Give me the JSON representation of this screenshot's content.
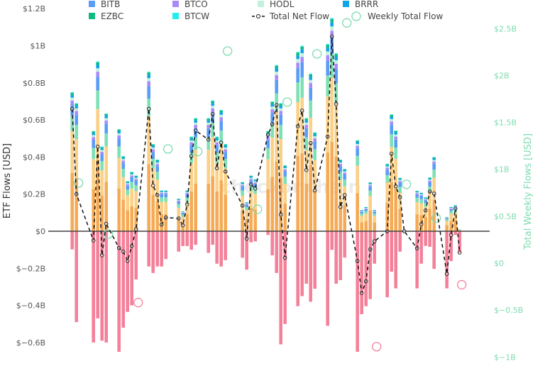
{
  "chart_data": {
    "type": "bar",
    "title": "",
    "ylabel": "ETF Flows [USD]",
    "y2label": "Total Weekly Flows [USD]",
    "ylim": [
      -0.6,
      1.2
    ],
    "y2lim": [
      -1,
      2.5
    ],
    "units": "billion USD",
    "watermark": "checkonchain",
    "left_ticks": [
      {
        "v": 1.2,
        "label": "$1.2B"
      },
      {
        "v": 1.0,
        "label": "$1B"
      },
      {
        "v": 0.8,
        "label": "$0.8B"
      },
      {
        "v": 0.6,
        "label": "$0.6B"
      },
      {
        "v": 0.4,
        "label": "$0.4B"
      },
      {
        "v": 0.2,
        "label": "$0.2B"
      },
      {
        "v": 0,
        "label": "$0"
      },
      {
        "v": -0.2,
        "label": "$−0.2B"
      },
      {
        "v": -0.4,
        "label": "$−0.4B"
      },
      {
        "v": -0.6,
        "label": "$−0.6B"
      }
    ],
    "right_ticks": [
      {
        "v": 2.5,
        "label": "$2.5B"
      },
      {
        "v": 2.0,
        "label": "$2B"
      },
      {
        "v": 1.5,
        "label": "$1.5B"
      },
      {
        "v": 1.0,
        "label": "$1B"
      },
      {
        "v": 0.5,
        "label": "$0.5B"
      },
      {
        "v": 0,
        "label": "$0"
      },
      {
        "v": -0.5,
        "label": "$−0.5B"
      },
      {
        "v": -1.0,
        "label": "$−1B"
      }
    ],
    "legend": [
      {
        "name": "BITB",
        "color": "#5b9cf6",
        "kind": "bar"
      },
      {
        "name": "BTCO",
        "color": "#a78bfa",
        "kind": "bar"
      },
      {
        "name": "HODL",
        "color": "#c2f0dc",
        "kind": "bar"
      },
      {
        "name": "BRRR",
        "color": "#0ea5e9",
        "kind": "bar"
      },
      {
        "name": "EZBC",
        "color": "#10b981",
        "kind": "bar"
      },
      {
        "name": "BTCW",
        "color": "#22eeee",
        "kind": "bar"
      },
      {
        "name": "Total Net Flow",
        "color": "#111111",
        "kind": "line"
      },
      {
        "name": "Weekly Total Flow",
        "color": "#7ddbb0",
        "kind": "circle"
      }
    ],
    "positive_stack_shares": [
      {
        "color": "#f5ab55",
        "share": 0.42
      },
      {
        "color": "#fbd087",
        "share": 0.3
      },
      {
        "color": "#7ee0b5",
        "share": 0.11
      },
      {
        "color": "#5b9cf6",
        "share": 0.08
      },
      {
        "color": "#a78bfa",
        "share": 0.03
      },
      {
        "color": "#c2f0dc",
        "share": 0.02
      },
      {
        "color": "#0ea5e9",
        "share": 0.02
      },
      {
        "color": "#10b981",
        "share": 0.015
      },
      {
        "color": "#22eeee",
        "share": 0.005
      }
    ],
    "negative_color": "#f4819a",
    "daily": {
      "day": [
        0,
        1,
        5,
        6,
        7,
        8,
        11,
        12,
        13,
        14,
        15,
        18,
        19,
        20,
        21,
        22,
        25,
        26,
        27,
        28,
        29,
        32,
        33,
        34,
        35,
        36,
        40,
        41,
        42,
        43,
        46,
        47,
        48,
        49,
        50,
        53,
        54,
        55,
        56,
        57,
        60,
        61,
        62,
        63,
        64,
        67,
        68,
        69,
        70,
        71,
        74,
        75,
        76,
        77,
        78,
        81,
        82,
        83,
        84,
        85,
        88,
        89,
        90,
        91
      ],
      "inflow": [
        0.75,
        0.69,
        0.54,
        0.915,
        0.456,
        0.635,
        0.55,
        0.405,
        0.27,
        0.32,
        0.3,
        0.86,
        0.47,
        0.386,
        0.22,
        0.22,
        0.176,
        0.107,
        0.22,
        0.51,
        0.61,
        0.61,
        0.705,
        0.51,
        0.654,
        0.47,
        0.265,
        0.157,
        0.3,
        0.28,
        0.54,
        0.7,
        0.896,
        0.69,
        0.355,
        0.967,
        1.0,
        0.61,
        0.85,
        0.533,
        1.01,
        1.15,
        0.96,
        0.386,
        0.336,
        0.49,
        0.115,
        0.131,
        0.264,
        0.115,
        0.364,
        0.63,
        0.543,
        0.288,
        0,
        0.218,
        0.208,
        0.183,
        0.29,
        0.4,
        0.077,
        0.131,
        0.141,
        0.01
      ],
      "outflow": [
        -0.098,
        -0.49,
        -0.6,
        -0.47,
        -0.59,
        -0.6,
        -0.65,
        -0.52,
        -0.435,
        -0.4,
        -0.26,
        -0.19,
        -0.225,
        -0.19,
        -0.19,
        -0.15,
        -0.11,
        -0.08,
        -0.08,
        -0.1,
        -0.073,
        -0.117,
        -0.073,
        -0.175,
        -0.19,
        -0.156,
        -0.143,
        -0.207,
        -0.06,
        -0.055,
        -0.02,
        -0.13,
        -0.225,
        -0.61,
        -0.5,
        -0.404,
        -0.35,
        -0.283,
        -0.38,
        -0.31,
        -0.51,
        -0.1,
        -0.283,
        -0.264,
        -0.142,
        -0.65,
        -0.447,
        -0.404,
        -0.366,
        -0.175,
        -0.356,
        -0.218,
        -0.308,
        -0.11,
        0,
        -0.308,
        -0.175,
        -0.079,
        -0.084,
        -0.203,
        -0.308,
        -0.161,
        -0.02,
        -0.117
      ],
      "net": [
        0.66,
        0.2,
        -0.05,
        0.456,
        -0.13,
        0.04,
        -0.09,
        -0.11,
        -0.16,
        -0.08,
        0.01,
        0.66,
        0.246,
        0.195,
        0.036,
        0.074,
        0.069,
        0.032,
        0.145,
        0.405,
        0.543,
        0.494,
        0.632,
        0.34,
        0.478,
        0.322,
        0.138,
        -0.04,
        0.252,
        0.23,
        0.52,
        0.577,
        0.68,
        0.09,
        -0.143,
        0.566,
        0.65,
        0.33,
        0.475,
        0.22,
        0.51,
        1.05,
        0.686,
        0.131,
        0.195,
        -0.16,
        -0.333,
        -0.27,
        -0.098,
        -0.054,
        0.0,
        0.418,
        0.242,
        0.183,
        0.0,
        -0.092,
        0.038,
        0.112,
        0.214,
        0.203,
        -0.23,
        -0.02,
        0.122,
        -0.115
      ]
    },
    "weekly": {
      "day": [
        1,
        8,
        15,
        22,
        29,
        36,
        43,
        50,
        57,
        64,
        71,
        78,
        85,
        91
      ],
      "total": [
        0.854,
        0.31,
        -0.42,
        1.217,
        1.19,
        2.26,
        0.574,
        1.716,
        2.23,
        2.56,
        -0.89,
        0.84,
        0.48,
        -0.23
      ]
    }
  }
}
